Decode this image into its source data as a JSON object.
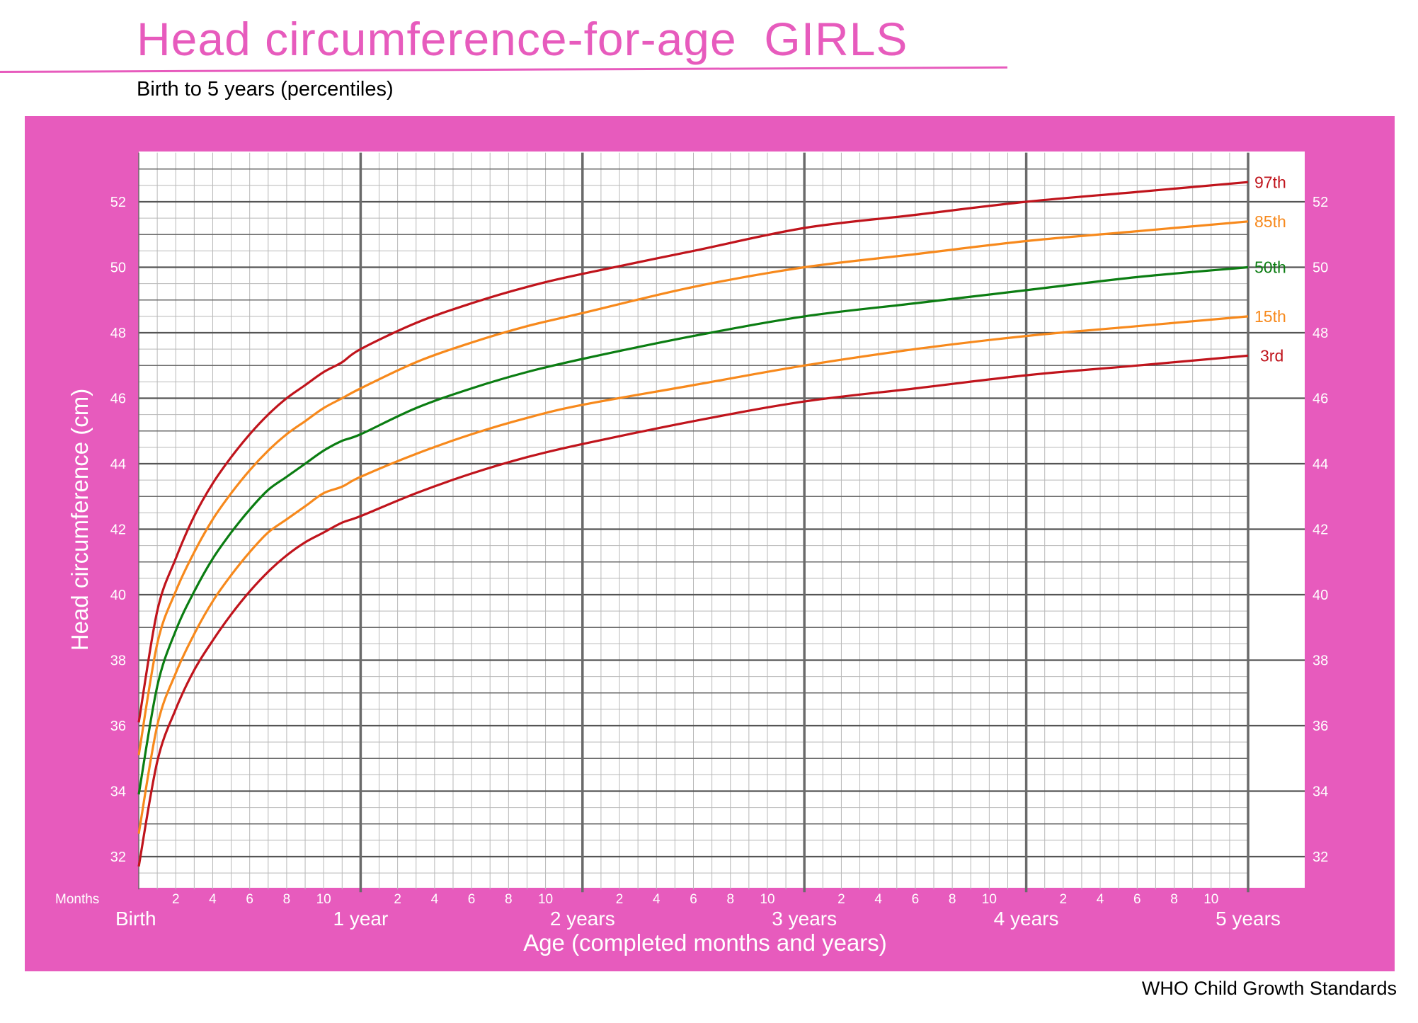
{
  "title": "Head circumference-for-age  GIRLS",
  "subtitle": "Birth to 5 years (percentiles)",
  "footer": "WHO Child Growth Standards",
  "colors": {
    "frame": "#e75bbd",
    "red": "#c0141c",
    "orange": "#f7891c",
    "green": "#0b7d12"
  },
  "chart_data": {
    "type": "line",
    "title": "Head circumference-for-age  GIRLS",
    "subtitle": "Birth to 5 years (percentiles)",
    "xlabel": "Age (completed months and years)",
    "ylabel": "Head circumference (cm)",
    "x_unit_label": "Months",
    "xlim": [
      0,
      60
    ],
    "ylim": [
      31,
      53.5
    ],
    "grid": true,
    "month_ticks": [
      "2",
      "4",
      "6",
      "8",
      "10"
    ],
    "year_labels": [
      "Birth",
      "1 year",
      "2 years",
      "3 years",
      "4 years",
      "5 years"
    ],
    "y_ticks": [
      32,
      34,
      36,
      38,
      40,
      42,
      44,
      46,
      48,
      50,
      52
    ],
    "x": [
      0,
      1,
      2,
      3,
      4,
      5,
      6,
      7,
      8,
      9,
      10,
      11,
      12,
      15,
      18,
      21,
      24,
      30,
      36,
      42,
      48,
      54,
      60
    ],
    "series": [
      {
        "name": "97th",
        "color": "#c0141c",
        "values": [
          36.1,
          39.5,
          41.1,
          42.4,
          43.4,
          44.2,
          44.9,
          45.5,
          46.0,
          46.4,
          46.8,
          47.1,
          47.5,
          48.3,
          48.9,
          49.4,
          49.8,
          50.5,
          51.2,
          51.6,
          52.0,
          52.3,
          52.6
        ]
      },
      {
        "name": "85th",
        "color": "#f7891c",
        "values": [
          35.1,
          38.5,
          40.1,
          41.3,
          42.3,
          43.1,
          43.8,
          44.4,
          44.9,
          45.3,
          45.7,
          46.0,
          46.3,
          47.1,
          47.7,
          48.2,
          48.6,
          49.4,
          50.0,
          50.4,
          50.8,
          51.1,
          51.4
        ]
      },
      {
        "name": "50th",
        "color": "#0b7d12",
        "values": [
          33.9,
          37.2,
          38.9,
          40.1,
          41.1,
          41.9,
          42.6,
          43.2,
          43.6,
          44.0,
          44.4,
          44.7,
          44.9,
          45.7,
          46.3,
          46.8,
          47.2,
          47.9,
          48.5,
          48.9,
          49.3,
          49.7,
          50.0
        ]
      },
      {
        "name": "15th",
        "color": "#f7891c",
        "values": [
          32.7,
          36.0,
          37.6,
          38.8,
          39.8,
          40.6,
          41.3,
          41.9,
          42.3,
          42.7,
          43.1,
          43.3,
          43.6,
          44.3,
          44.9,
          45.4,
          45.8,
          46.4,
          47.0,
          47.5,
          47.9,
          48.2,
          48.5
        ]
      },
      {
        "name": "3rd",
        "color": "#c0141c",
        "values": [
          31.7,
          34.9,
          36.5,
          37.7,
          38.6,
          39.4,
          40.1,
          40.7,
          41.2,
          41.6,
          41.9,
          42.2,
          42.4,
          43.1,
          43.7,
          44.2,
          44.6,
          45.3,
          45.9,
          46.3,
          46.7,
          47.0,
          47.3
        ]
      }
    ]
  }
}
